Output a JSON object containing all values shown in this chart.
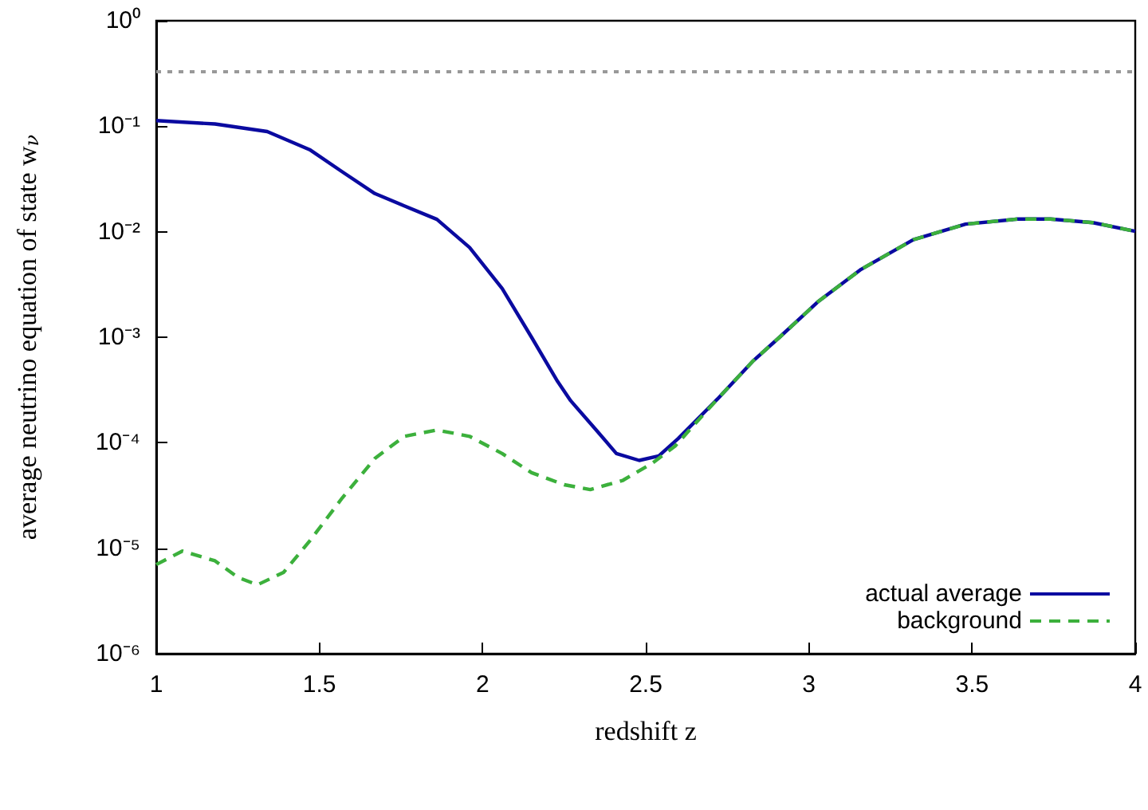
{
  "chart_data": {
    "type": "line",
    "xlabel": "redshift z",
    "ylabel": "average neutrino equation of state w$_{ν}$",
    "log": true,
    "grid": false,
    "legend": "bottom right",
    "xlim": [
      1,
      4
    ],
    "xticks": [
      1,
      1.5,
      2,
      2.5,
      3,
      3.5,
      4
    ],
    "ylim": [
      1e-06,
      1
    ],
    "yticks": [
      {
        "value": 1e-06,
        "label": "10⁻⁶"
      },
      {
        "value": 1e-05,
        "label": "10⁻⁵"
      },
      {
        "value": 0.0001,
        "label": "10⁻⁴"
      },
      {
        "value": 0.001,
        "label": "10⁻³"
      },
      {
        "value": 0.01,
        "label": "10⁻²"
      },
      {
        "value": 0.1,
        "label": "10⁻¹"
      },
      {
        "value": 1,
        "label": "10⁰"
      }
    ],
    "ref_lines": [
      {
        "axis": "y",
        "value": 0.333,
        "label": null,
        "color": "#999999",
        "line_style": "dotted"
      }
    ],
    "series": [
      {
        "name": "actual average",
        "color": "#0a0aa0",
        "line_style": "solid",
        "x": [
          1.0,
          1.18,
          1.34,
          1.47,
          1.57,
          1.67,
          1.76,
          1.86,
          1.96,
          2.06,
          2.15,
          2.23,
          2.27,
          2.35,
          2.41,
          2.48,
          2.54,
          2.6,
          2.72,
          2.83,
          2.91,
          3.03,
          3.16,
          3.32,
          3.48,
          3.64,
          3.74,
          3.87,
          4.0
        ],
        "values": [
          0.113,
          0.105,
          0.089,
          0.06,
          0.037,
          0.023,
          0.0176,
          0.0131,
          0.0071,
          0.0029,
          0.001,
          0.00038,
          0.00025,
          0.00013,
          7.9e-05,
          6.8e-05,
          7.5e-05,
          0.00011,
          0.00026,
          0.0006,
          0.001,
          0.0022,
          0.0044,
          0.0084,
          0.0118,
          0.0132,
          0.0132,
          0.0122,
          0.0101
        ]
      },
      {
        "name": "background",
        "color": "#3cb03c",
        "line_style": "dashed",
        "x": [
          1.0,
          1.08,
          1.18,
          1.25,
          1.31,
          1.39,
          1.47,
          1.57,
          1.67,
          1.76,
          1.86,
          1.96,
          2.06,
          2.15,
          2.25,
          2.33,
          2.43,
          2.52,
          2.59,
          2.65,
          2.72,
          2.83,
          2.91,
          3.03,
          3.16,
          3.32,
          3.48,
          3.64,
          3.74,
          3.87,
          4.0
        ],
        "values": [
          7e-06,
          9.4e-06,
          7.6e-06,
          5.3e-06,
          4.5e-06,
          5.9e-06,
          1.17e-05,
          3e-05,
          7.1e-05,
          0.000115,
          0.000132,
          0.000115,
          7.9e-05,
          5.2e-05,
          4e-05,
          3.6e-05,
          4.4e-05,
          6.4e-05,
          9.3e-05,
          0.00015,
          0.00026,
          0.0006,
          0.001,
          0.0022,
          0.0044,
          0.0084,
          0.0118,
          0.0132,
          0.0132,
          0.0122,
          0.0101
        ]
      }
    ]
  }
}
